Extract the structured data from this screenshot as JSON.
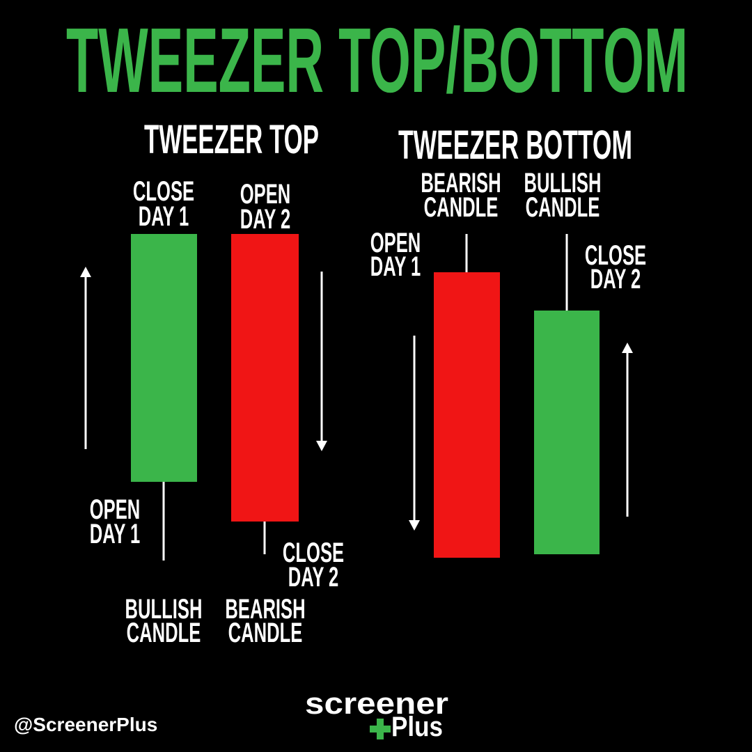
{
  "title": "TWEEZER TOP/BOTTOM",
  "tweezer_top": {
    "heading": "TWEEZER TOP",
    "close_day_1": [
      "CLOSE",
      "DAY 1"
    ],
    "open_day_2": [
      "OPEN",
      "DAY 2"
    ],
    "open_day_1": [
      "OPEN",
      "DAY 1"
    ],
    "close_day_2": [
      "CLOSE",
      "DAY 2"
    ],
    "bullish_candle": [
      "BULLISH",
      "CANDLE"
    ],
    "bearish_candle": [
      "BEARISH",
      "CANDLE"
    ]
  },
  "tweezer_bottom": {
    "heading": "TWEEZER BOTTOM",
    "bearish_candle": [
      "BEARISH",
      "CANDLE"
    ],
    "bullish_candle": [
      "BULLISH",
      "CANDLE"
    ],
    "open_day_1": [
      "OPEN",
      "DAY 1"
    ],
    "close_day_2": [
      "CLOSE",
      "DAY 2"
    ]
  },
  "footer": {
    "handle": "@ScreenerPlus",
    "logo_top": "screener",
    "logo_bottom": "Plus"
  }
}
